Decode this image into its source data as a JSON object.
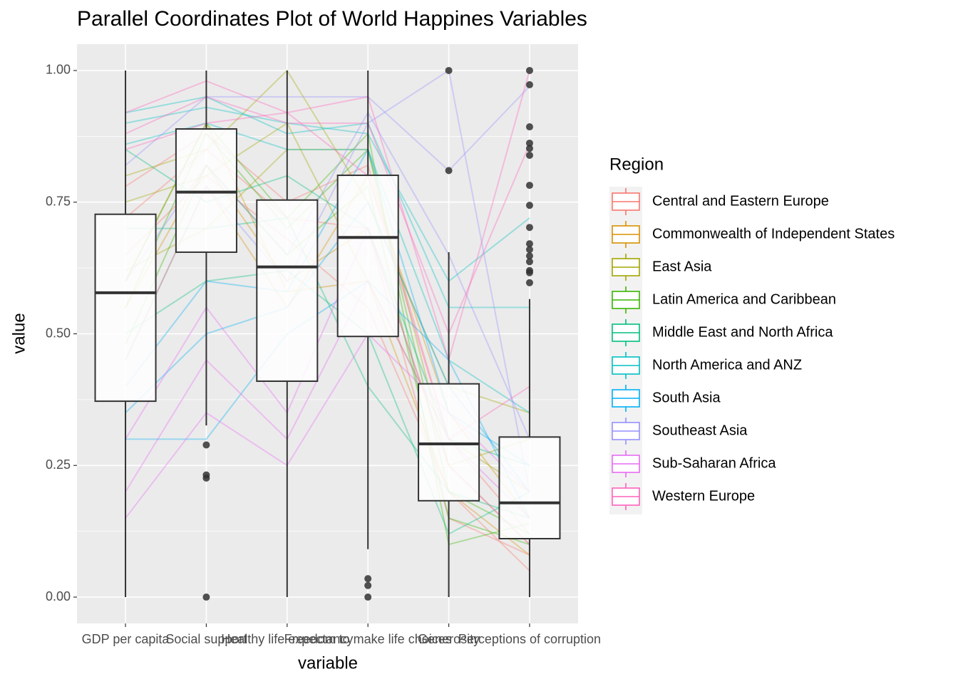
{
  "chart_data": {
    "type": "parallel",
    "title": "Parallel Coordinates Plot of World Happines Variables",
    "x_label": "variable",
    "y_label": "value",
    "categories": [
      "GDP per capita",
      "Social support",
      "Healthy life expectancy",
      "Freedom to make life choices",
      "Generosity",
      "Perceptions of corruption"
    ],
    "ylim": [
      -0.05,
      1.05
    ],
    "yticks": [
      {
        "value": 0,
        "label": "0.00"
      },
      {
        "value": 0.25,
        "label": "0.25"
      },
      {
        "value": 0.5,
        "label": "0.50"
      },
      {
        "value": 0.75,
        "label": "0.75"
      },
      {
        "value": 1,
        "label": "1.00"
      }
    ],
    "grid": true,
    "legend_title": "Region",
    "legend_position": "right",
    "boxes": [
      {
        "lower": 0,
        "q1": 0.372,
        "median": 0.578,
        "q3": 0.727,
        "upper": 1,
        "outliers": []
      },
      {
        "lower": 0.326,
        "q1": 0.655,
        "median": 0.769,
        "q3": 0.889,
        "upper": 1,
        "outliers": [
          0.289,
          0.232,
          0.226,
          0
        ]
      },
      {
        "lower": 0,
        "q1": 0.41,
        "median": 0.627,
        "q3": 0.754,
        "upper": 1,
        "outliers": []
      },
      {
        "lower": 0.091,
        "q1": 0.495,
        "median": 0.683,
        "q3": 0.801,
        "upper": 1,
        "outliers": [
          0.035,
          0.022,
          0
        ]
      },
      {
        "lower": 0,
        "q1": 0.183,
        "median": 0.291,
        "q3": 0.405,
        "upper": 0.655,
        "outliers": [
          1,
          0.81
        ]
      },
      {
        "lower": 0,
        "q1": 0.111,
        "median": 0.179,
        "q3": 0.304,
        "upper": 0.566,
        "outliers": [
          1,
          0.973,
          0.893,
          0.862,
          0.852,
          0.839,
          0.782,
          0.744,
          0.702,
          0.671,
          0.66,
          0.648,
          0.637,
          0.62,
          0.616,
          0.597
        ]
      }
    ],
    "series": [
      {
        "name": "Central and Eastern Europe",
        "color": "#F8766D",
        "values": [
          [
            0.72,
            0.85,
            0.72,
            0.7,
            0.15,
            0.08
          ],
          [
            0.65,
            0.8,
            0.68,
            0.55,
            0.2,
            0.05
          ],
          [
            0.78,
            0.88,
            0.75,
            0.82,
            0.3,
            0.12
          ]
        ]
      },
      {
        "name": "Commonwealth of Independent States",
        "color": "#D89000",
        "values": [
          [
            0.55,
            0.82,
            0.6,
            0.7,
            0.25,
            0.1
          ],
          [
            0.45,
            0.78,
            0.55,
            0.8,
            0.35,
            0.15
          ],
          [
            0.6,
            0.9,
            0.58,
            0.6,
            0.2,
            0.08
          ]
        ]
      },
      {
        "name": "East Asia",
        "color": "#A3A500",
        "values": [
          [
            0.8,
            0.85,
            1,
            0.75,
            0.4,
            0.35
          ],
          [
            0.75,
            0.8,
            0.9,
            0.6,
            0.3,
            0.2
          ],
          [
            0.62,
            0.7,
            0.85,
            0.85,
            0.25,
            0.3
          ]
        ]
      },
      {
        "name": "Latin America and Caribbean",
        "color": "#39B600",
        "values": [
          [
            0.55,
            0.88,
            0.7,
            0.85,
            0.2,
            0.12
          ],
          [
            0.48,
            0.82,
            0.65,
            0.78,
            0.15,
            0.1
          ],
          [
            0.6,
            0.9,
            0.72,
            0.88,
            0.1,
            0.14
          ]
        ]
      },
      {
        "name": "Middle East and North Africa",
        "color": "#00BF7D",
        "values": [
          [
            0.85,
            0.75,
            0.8,
            0.7,
            0.3,
            0.25
          ],
          [
            0.5,
            0.6,
            0.62,
            0.5,
            0.12,
            0.2
          ],
          [
            0.7,
            0.7,
            0.72,
            0.4,
            0.2,
            0.15
          ]
        ]
      },
      {
        "name": "North America and ANZ",
        "color": "#00BFC4",
        "values": [
          [
            0.92,
            0.95,
            0.88,
            0.9,
            0.55,
            0.55
          ],
          [
            0.9,
            0.93,
            0.9,
            0.88,
            0.6,
            0.72
          ],
          [
            0.86,
            0.9,
            0.85,
            0.85,
            0.45,
            0.35
          ]
        ]
      },
      {
        "name": "South Asia",
        "color": "#00B0F6",
        "values": [
          [
            0.35,
            0.5,
            0.55,
            0.75,
            0.4,
            0.2
          ],
          [
            0.3,
            0.3,
            0.5,
            0.6,
            0.45,
            0.15
          ],
          [
            0.4,
            0.6,
            0.58,
            0.85,
            0.35,
            0.25
          ]
        ]
      },
      {
        "name": "Southeast Asia",
        "color": "#9590FF",
        "values": [
          [
            0.6,
            0.82,
            0.65,
            0.92,
            0.65,
            0.3
          ],
          [
            0.45,
            0.78,
            0.6,
            0.9,
            1,
            0.2
          ],
          [
            0.82,
            0.95,
            0.95,
            0.95,
            0.81,
            0.97
          ]
        ]
      },
      {
        "name": "Sub-Saharan Africa",
        "color": "#E76BF3",
        "values": [
          [
            0.2,
            0.45,
            0.3,
            0.6,
            0.3,
            0.15
          ],
          [
            0.15,
            0.35,
            0.25,
            0.5,
            0.35,
            0.2
          ],
          [
            0.3,
            0.55,
            0.35,
            0.7,
            0.25,
            0.1
          ]
        ]
      },
      {
        "name": "Western Europe",
        "color": "#FF62BC",
        "values": [
          [
            0.92,
            0.98,
            0.92,
            0.95,
            0.45,
            1
          ],
          [
            0.88,
            0.95,
            0.9,
            0.9,
            0.5,
            0.86
          ],
          [
            0.85,
            0.9,
            0.92,
            0.8,
            0.3,
            0.4
          ]
        ]
      }
    ]
  }
}
